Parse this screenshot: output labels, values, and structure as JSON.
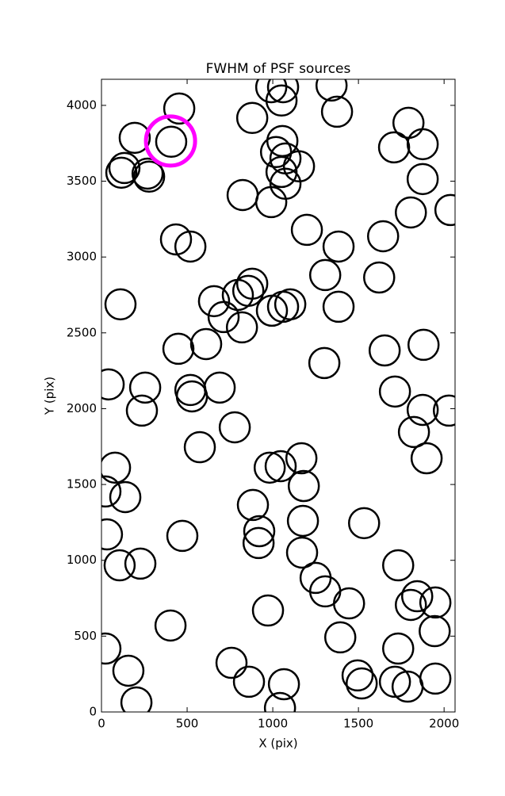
{
  "chart_data": {
    "type": "scatter",
    "title": "FWHM of PSF sources",
    "x_label": "X (pix)",
    "y_label": "Y (pix)",
    "xlim": [
      0,
      2064
    ],
    "ylim": [
      0,
      4172
    ],
    "xticks": [
      0,
      500,
      1000,
      1500,
      2000
    ],
    "yticks": [
      0,
      500,
      1000,
      1500,
      2000,
      2500,
      3000,
      3500,
      4000
    ],
    "series": [
      {
        "color": "#000000",
        "x": [
          454,
          194,
          407,
          134,
          116,
          269,
          278,
          991,
          1060,
          1051,
          880,
          1343,
          1375,
          1792,
          1875,
          1708,
          1019,
          1056,
          1074,
          1153,
          1051,
          1074,
          1875,
          824,
          991,
          1806,
          2037,
          1199,
          1384,
          1644,
          435,
          519,
          1306,
          1621,
          111,
          880,
          796,
          857,
          657,
          713,
          995,
          1060,
          1102,
          820,
          1384,
          449,
          611,
          1301,
          1653,
          1880,
          42,
          255,
          519,
          528,
          690,
          236,
          1713,
          1875,
          2028,
          778,
          1824,
          1898,
          574,
          79,
          23,
          139,
          982,
          1046,
          1167,
          1181,
          884,
          921,
          917,
          1533,
          1176,
          32,
          472,
          106,
          227,
          1171,
          1732,
          1250,
          1306,
          1445,
          1843,
          1806,
          1949,
          972,
          403,
          23,
          157,
          759,
          861,
          1065,
          1394,
          1732,
          1495,
          1519,
          1713,
          1787,
          1949,
          1945,
          204,
          1042
        ],
        "y": [
          3979,
          3786,
          3760,
          3587,
          3556,
          3550,
          3530,
          4120,
          4120,
          4032,
          3917,
          4131,
          3958,
          3885,
          3744,
          3723,
          3692,
          3765,
          3650,
          3598,
          3561,
          3483,
          3514,
          3409,
          3362,
          3294,
          3310,
          3179,
          3069,
          3137,
          3116,
          3069,
          2881,
          2865,
          2688,
          2824,
          2750,
          2777,
          2709,
          2604,
          2646,
          2672,
          2688,
          2536,
          2672,
          2395,
          2426,
          2301,
          2384,
          2421,
          2160,
          2139,
          2123,
          2081,
          2139,
          1987,
          2113,
          1992,
          1987,
          1877,
          1846,
          1673,
          1746,
          1611,
          1454,
          1417,
          1611,
          1621,
          1673,
          1490,
          1365,
          1192,
          1114,
          1245,
          1260,
          1171,
          1161,
          967,
          978,
          1051,
          967,
          884,
          795,
          716,
          763,
          706,
          722,
          669,
          570,
          418,
          272,
          324,
          199,
          183,
          492,
          418,
          241,
          188,
          199,
          167,
          220,
          533,
          63,
          26
        ]
      },
      {
        "color": "#ff00ff",
        "x": [
          403
        ],
        "y": [
          3765
        ]
      }
    ]
  }
}
